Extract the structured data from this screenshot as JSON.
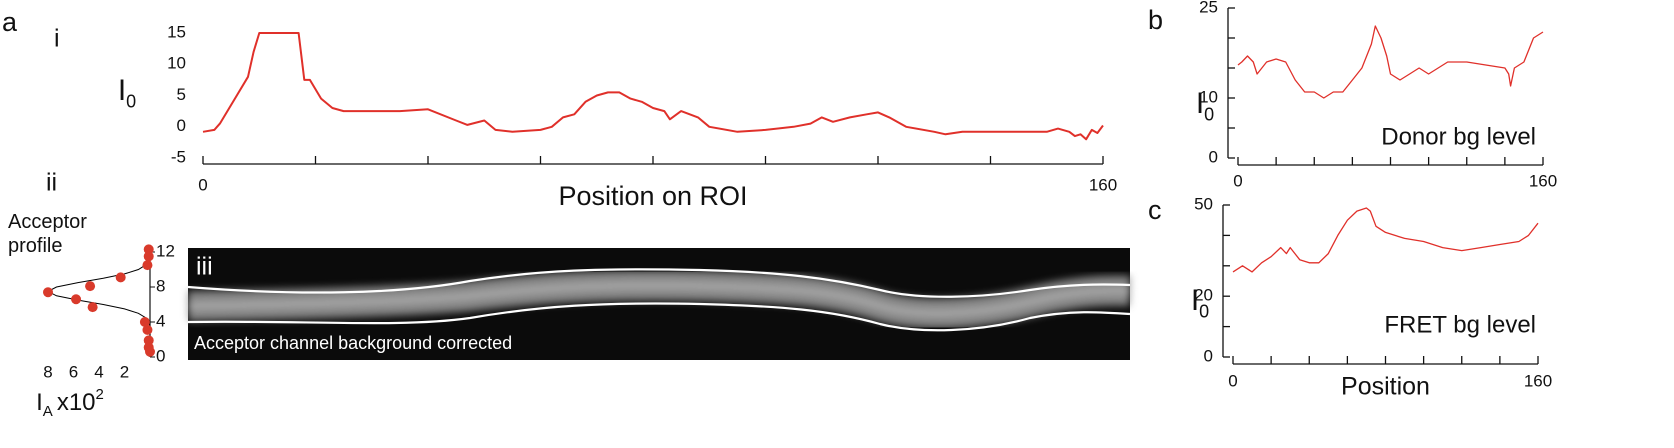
{
  "chart_data": [
    {
      "type": "line",
      "figure_label": "a",
      "panel_label": "i",
      "ylabel": "I",
      "ylabel_sub": "0",
      "xlabel": "Position on ROI",
      "x": [
        0,
        2,
        3,
        6,
        8,
        9,
        10,
        17,
        18,
        19,
        21,
        23,
        25,
        30,
        35,
        40,
        45,
        47,
        50,
        52,
        55,
        60,
        62,
        64,
        66,
        68,
        70,
        72,
        74,
        76,
        78,
        80,
        82,
        83,
        85,
        88,
        90,
        95,
        100,
        105,
        108,
        110,
        112,
        115,
        118,
        120,
        122,
        125,
        130,
        132,
        135,
        140,
        145,
        150,
        152,
        154,
        155,
        156,
        157,
        158,
        159,
        160
      ],
      "series": [
        {
          "color": "#e0302a",
          "values": [
            -0.8,
            -0.5,
            0.5,
            5,
            8,
            12,
            15,
            15,
            7.5,
            7.5,
            4.5,
            3,
            2.5,
            2.5,
            2.5,
            2.8,
            1,
            0.3,
            1,
            -0.5,
            -0.8,
            -0.5,
            0,
            1.5,
            2,
            4,
            5,
            5.5,
            5.5,
            4.5,
            4,
            3,
            2.5,
            1.2,
            2.5,
            1.5,
            0,
            -0.8,
            -0.5,
            0,
            0.5,
            1.5,
            0.8,
            1.5,
            2,
            2.3,
            1.5,
            0,
            -0.8,
            -1.2,
            -0.8,
            -0.8,
            -0.8,
            -0.8,
            -0.3,
            -0.8,
            -1.5,
            -1.2,
            -2,
            -0.5,
            -1,
            0.2
          ]
        }
      ],
      "xlim": [
        0,
        160
      ],
      "ylim": [
        -5,
        15
      ],
      "xticks": [
        0,
        160
      ],
      "xminor": [
        20,
        40,
        60,
        80,
        100,
        120,
        140
      ],
      "yticks": [
        -5,
        0,
        5,
        10,
        15
      ],
      "y_axis_line": false
    },
    {
      "type": "scatter",
      "panel_label": "ii",
      "title": "Acceptor profile",
      "xlabel": "I",
      "xlabel_sub": "A",
      "xlabel_rest": "x10",
      "xlabel_sup": "2",
      "xlim": [
        8,
        0
      ],
      "ylim": [
        0,
        12
      ],
      "xticks": [
        8,
        6,
        4,
        2
      ],
      "yticks": [
        0,
        4,
        8,
        12
      ],
      "series": [
        {
          "color": "#d93a2b",
          "x": [
            0.1,
            0.1,
            0.2,
            2.3,
            4.7,
            8,
            5.8,
            4.5,
            0.4,
            0.2,
            0.1,
            0.1,
            0
          ],
          "values": [
            12.3,
            11.5,
            10.5,
            9.1,
            8.1,
            7.4,
            6.6,
            5.7,
            4.0,
            3.1,
            1.9,
            1.1,
            0.6
          ]
        }
      ],
      "fit": {
        "color": "#000000",
        "x": [
          0,
          0,
          0.11,
          0.35,
          0.91,
          2,
          3.66,
          5.65,
          7.33,
          8,
          7.33,
          5.65,
          3.66,
          2,
          0.91,
          0.35,
          0.11,
          0,
          0
        ],
        "values": [
          0,
          3.5,
          4,
          4.5,
          5,
          5.5,
          6,
          6.5,
          7,
          7.5,
          8,
          8.5,
          9,
          9.5,
          10,
          10.5,
          11,
          11.5,
          12
        ]
      }
    },
    {
      "type": "image",
      "panel_label": "iii",
      "caption": "Acceptor channel background corrected"
    },
    {
      "type": "line",
      "panel_label": "b",
      "ylabel": "I",
      "ylabel_sub": "0",
      "annotation": "Donor bg level",
      "x": [
        0,
        2,
        5,
        8,
        10,
        15,
        20,
        25,
        30,
        35,
        40,
        45,
        50,
        55,
        60,
        65,
        70,
        72,
        75,
        78,
        80,
        85,
        90,
        95,
        100,
        110,
        120,
        130,
        140,
        142,
        143,
        145,
        150,
        155,
        160
      ],
      "series": [
        {
          "color": "#e0302a",
          "values": [
            15.5,
            16,
            17,
            16,
            14,
            16,
            16.5,
            16,
            13,
            11,
            11,
            10,
            11,
            11,
            13,
            15,
            19,
            22,
            20,
            17,
            14,
            13,
            14,
            15,
            14,
            16,
            16,
            15.5,
            15,
            14,
            12,
            15,
            16,
            20,
            21
          ]
        }
      ],
      "xlim": [
        0,
        160
      ],
      "ylim": [
        0,
        25
      ],
      "xticks": [
        0,
        160
      ],
      "xminor": [
        20,
        40,
        60,
        80,
        100,
        120,
        140
      ],
      "yticks": [
        0,
        10,
        25
      ],
      "yminor": [
        5,
        15,
        20
      ],
      "y_axis_line": true
    },
    {
      "type": "line",
      "panel_label": "c",
      "ylabel": "I",
      "ylabel_sub": "0",
      "xlabel": "Position",
      "annotation": "FRET bg level",
      "x": [
        0,
        5,
        10,
        15,
        20,
        25,
        28,
        30,
        35,
        40,
        45,
        50,
        55,
        60,
        65,
        70,
        72,
        75,
        80,
        90,
        100,
        110,
        120,
        130,
        140,
        150,
        155,
        160
      ],
      "series": [
        {
          "color": "#e0302a",
          "values": [
            28,
            30,
            28,
            31,
            33,
            36,
            34,
            36,
            32,
            31,
            31,
            34,
            40,
            45,
            48,
            49,
            48,
            43,
            41,
            39,
            38,
            36,
            35,
            36,
            37,
            38,
            40,
            44
          ]
        }
      ],
      "xlim": [
        0,
        160
      ],
      "ylim": [
        0,
        50
      ],
      "xticks": [
        0,
        160
      ],
      "xminor": [
        20,
        40,
        60,
        80,
        100,
        120,
        140
      ],
      "yticks": [
        0,
        20,
        50
      ],
      "yminor": [
        10,
        30,
        40
      ],
      "y_axis_line": true
    }
  ]
}
